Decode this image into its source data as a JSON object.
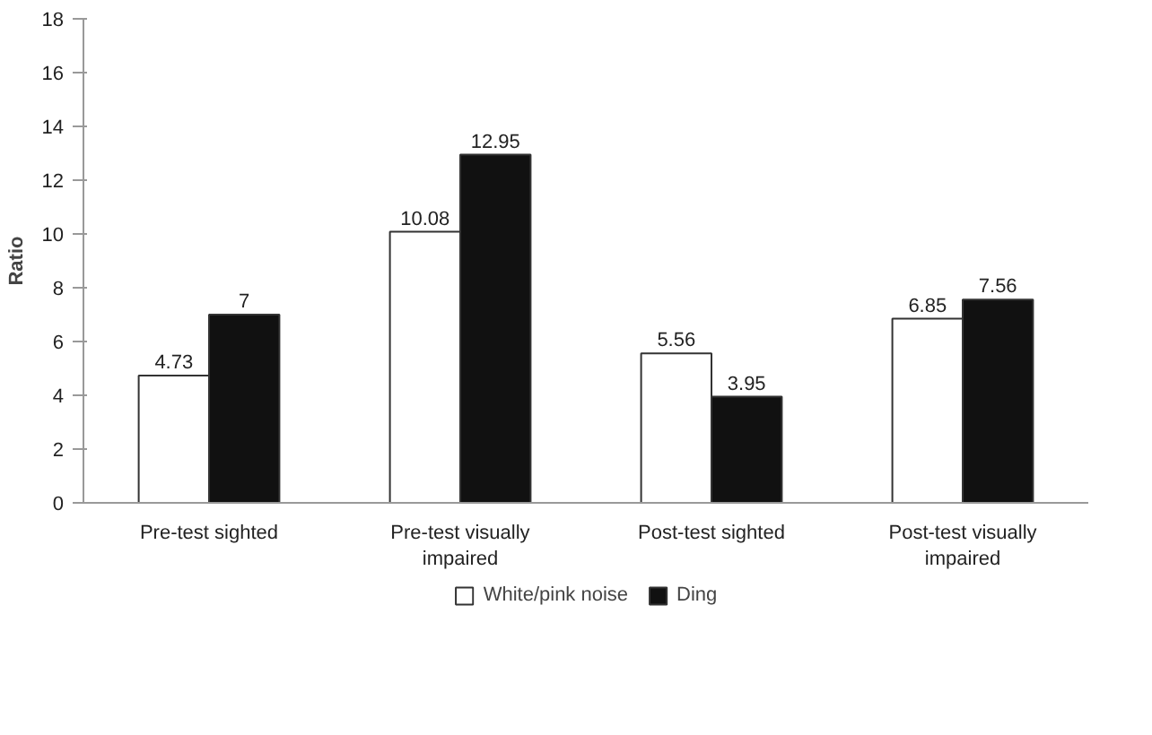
{
  "chart_data": {
    "type": "bar",
    "ylabel": "Ratio",
    "categories": [
      "Pre-test sighted",
      "Pre-test visually impaired",
      "Post-test sighted",
      "Post-test visually impaired"
    ],
    "series": [
      {
        "name": "White/pink noise",
        "color": "#ffffff",
        "values": [
          4.73,
          10.08,
          5.56,
          6.85
        ]
      },
      {
        "name": "Ding",
        "color": "#111111",
        "values": [
          7,
          12.95,
          3.95,
          7.56
        ]
      }
    ],
    "ylim": [
      0,
      18
    ],
    "yticks": [
      0,
      2,
      4,
      6,
      8,
      10,
      12,
      14,
      16,
      18
    ],
    "grid": false,
    "legend": "bottom",
    "data_labels": true
  }
}
